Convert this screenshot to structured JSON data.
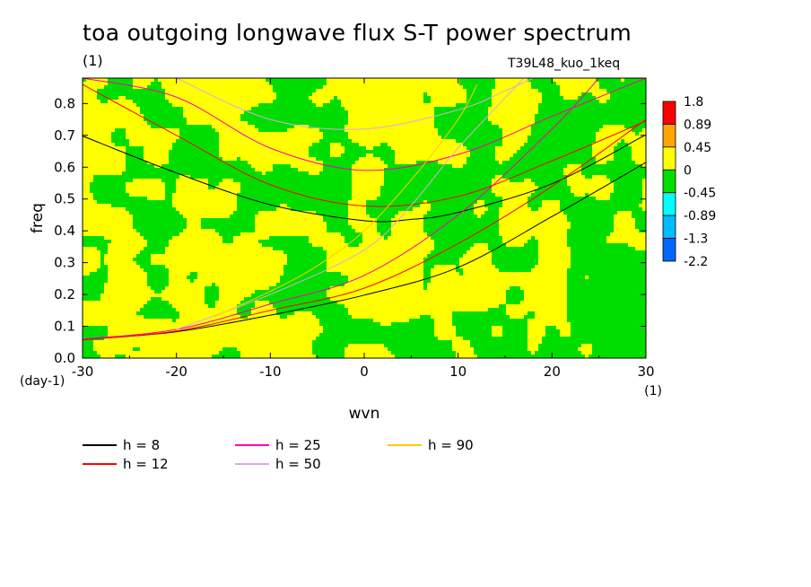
{
  "header": {
    "title": "toa outgoing longwave flux S-T power spectrum",
    "units": "(1)",
    "experiment": "T39L48_kuo_1keq"
  },
  "chart_data": {
    "type": "heatmap",
    "xlabel": "wvn",
    "xunit": "(1)",
    "ylabel": "freq",
    "yunit": "(day-1)",
    "xlim": [
      -30,
      30
    ],
    "ylim": [
      0,
      0.88
    ],
    "xticks": [
      "-30",
      "-20",
      "-10",
      "0",
      "10",
      "20",
      "30"
    ],
    "yticks": [
      "0.0",
      "0.1",
      "0.2",
      "0.3",
      "0.4",
      "0.5",
      "0.6",
      "0.7",
      "0.8"
    ],
    "grid": false,
    "colorbar": {
      "levels": [
        "1.8",
        "0.89",
        "0.45",
        "0",
        "-0.45",
        "-0.89",
        "-1.3",
        "-2.2"
      ],
      "colors": [
        "#ff0000",
        "#ffa500",
        "#ffff00",
        "#00dd00",
        "#00ffff",
        "#00bbff",
        "#0066ff"
      ]
    },
    "field_colors": {
      "positive": "#ffff00",
      "negative": "#00dd00",
      "high": "#ffa500",
      "low": "#00ffff"
    },
    "legend": {
      "placement": "bottom",
      "entries": [
        {
          "label": "h =  8",
          "color": "#000000"
        },
        {
          "label": "h = 12",
          "color": "#ff0000"
        },
        {
          "label": "h = 25",
          "color": "#ff00aa"
        },
        {
          "label": "h = 50",
          "color": "#ddaadd"
        },
        {
          "label": "h = 90",
          "color": "#ffcc00"
        }
      ]
    },
    "dispersion_curves": [
      {
        "h": 8,
        "color": "#000000",
        "mode": "ER",
        "points": [
          [
            -30,
            0.698
          ],
          [
            -20,
            0.582
          ],
          [
            -10,
            0.482
          ],
          [
            0,
            0.432
          ],
          [
            5,
            0.436
          ],
          [
            10,
            0.458
          ],
          [
            20,
            0.548
          ],
          [
            30,
            0.702
          ]
        ]
      },
      {
        "h": 8,
        "color": "#000000",
        "mode": "Kelvin",
        "points": [
          [
            -30,
            0.058
          ],
          [
            -20,
            0.083
          ],
          [
            -10,
            0.135
          ],
          [
            0,
            0.198
          ],
          [
            10,
            0.285
          ],
          [
            20,
            0.445
          ],
          [
            30,
            0.615
          ]
        ]
      },
      {
        "h": 12,
        "color": "#ff0000",
        "mode": "ER",
        "points": [
          [
            -30,
            0.86
          ],
          [
            -20,
            0.7
          ],
          [
            -10,
            0.545
          ],
          [
            0,
            0.478
          ],
          [
            10,
            0.508
          ],
          [
            20,
            0.62
          ],
          [
            30,
            0.745
          ]
        ]
      },
      {
        "h": 12,
        "color": "#ff0000",
        "mode": "Kelvin",
        "points": [
          [
            -30,
            0.058
          ],
          [
            -20,
            0.085
          ],
          [
            -10,
            0.15
          ],
          [
            0,
            0.22
          ],
          [
            10,
            0.36
          ],
          [
            20,
            0.54
          ],
          [
            30,
            0.75
          ]
        ]
      },
      {
        "h": 25,
        "color": "#ff00aa",
        "mode": "ER",
        "points": [
          [
            -30,
            0.88
          ],
          [
            -20,
            0.82
          ],
          [
            -10,
            0.66
          ],
          [
            0,
            0.59
          ],
          [
            10,
            0.64
          ],
          [
            20,
            0.76
          ],
          [
            30,
            0.88
          ]
        ]
      },
      {
        "h": 25,
        "color": "#ff00aa",
        "mode": "Kelvin",
        "points": [
          [
            -30,
            0.06
          ],
          [
            -20,
            0.09
          ],
          [
            -10,
            0.17
          ],
          [
            0,
            0.26
          ],
          [
            10,
            0.45
          ],
          [
            20,
            0.72
          ],
          [
            25,
            0.88
          ]
        ]
      },
      {
        "h": 50,
        "color": "#ddaadd",
        "mode": "ER",
        "points": [
          [
            -20,
            0.88
          ],
          [
            -10,
            0.75
          ],
          [
            0,
            0.72
          ],
          [
            10,
            0.78
          ],
          [
            15,
            0.84
          ],
          [
            18,
            0.88
          ]
        ]
      },
      {
        "h": 50,
        "color": "#ddaadd",
        "mode": "Kelvin",
        "points": [
          [
            -20,
            0.09
          ],
          [
            -10,
            0.2
          ],
          [
            0,
            0.34
          ],
          [
            5,
            0.48
          ],
          [
            10,
            0.66
          ],
          [
            17,
            0.88
          ]
        ]
      },
      {
        "h": 90,
        "color": "#ffcc00",
        "mode": "Kelvin",
        "points": [
          [
            -16,
            0.13
          ],
          [
            -10,
            0.21
          ],
          [
            -5,
            0.29
          ],
          [
            0,
            0.4
          ],
          [
            5,
            0.56
          ],
          [
            10,
            0.75
          ],
          [
            12,
            0.86
          ]
        ]
      }
    ]
  }
}
